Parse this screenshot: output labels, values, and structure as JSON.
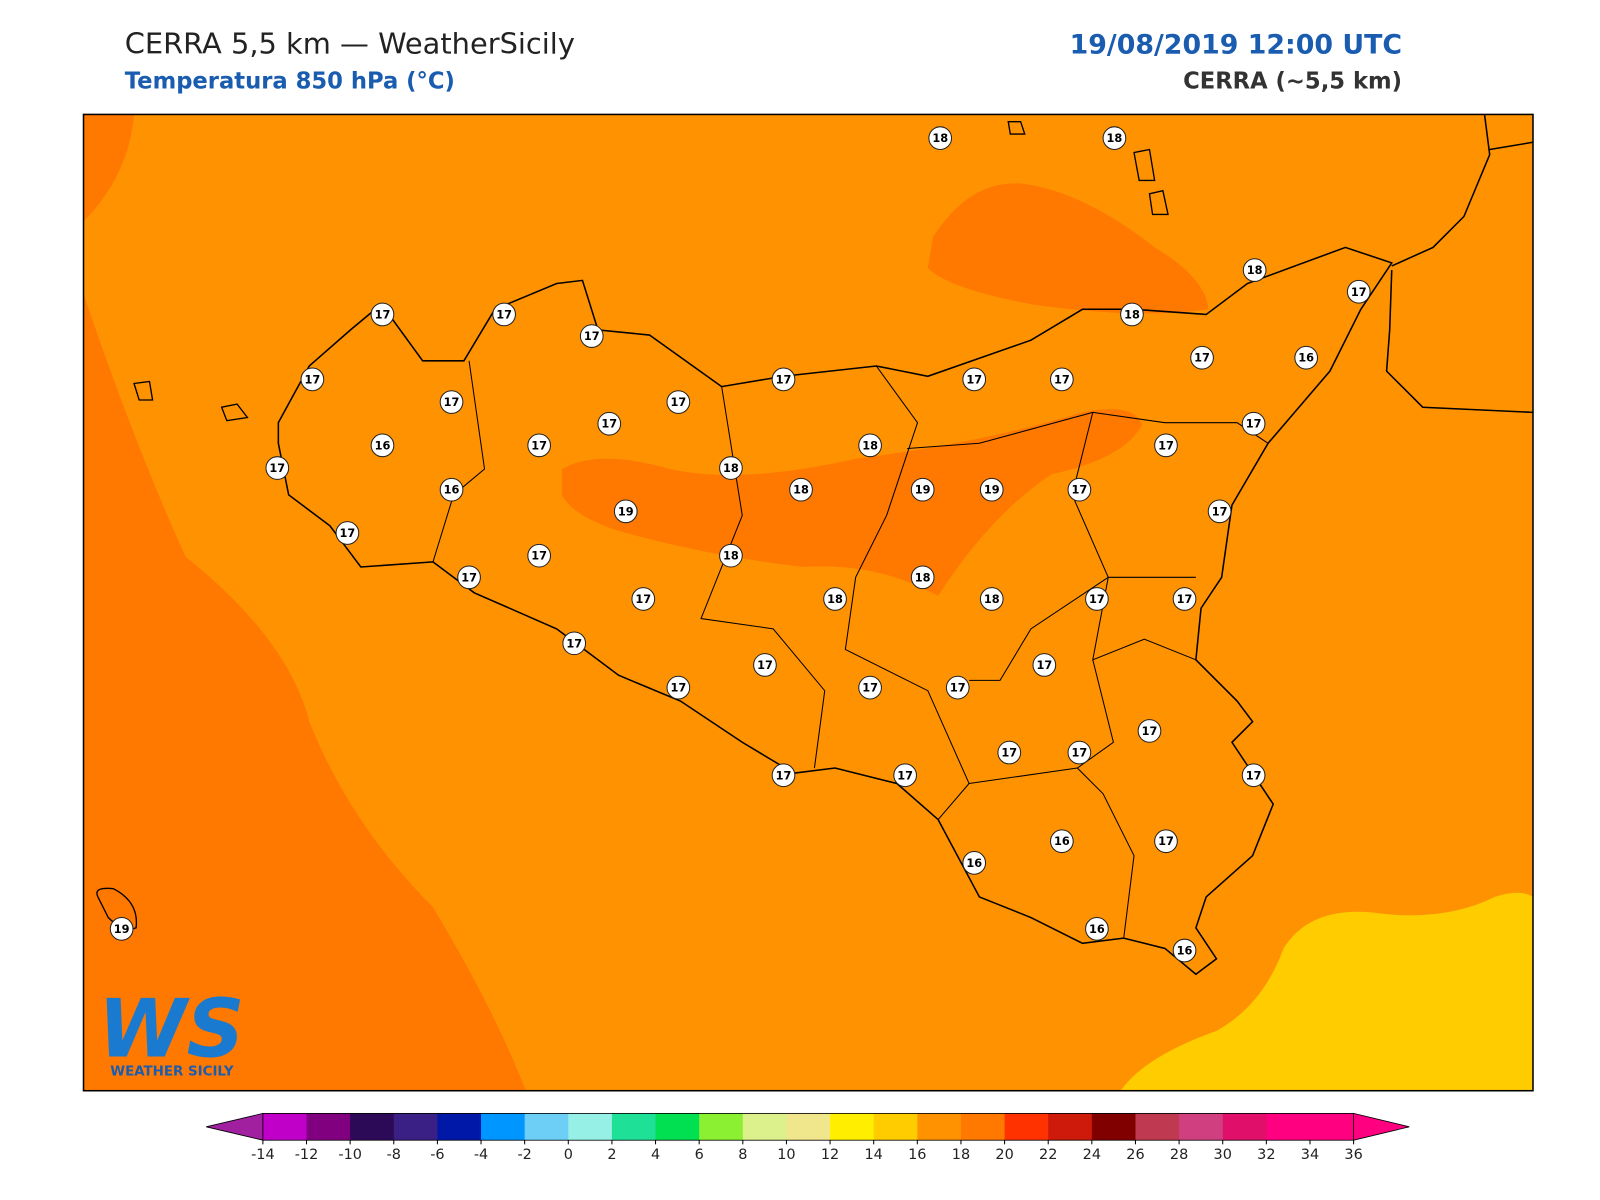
{
  "header": {
    "title": "CERRA 5,5 km — WeatherSicily",
    "subtitle": "Temperatura 850 hPa (°C)",
    "datetime": "19/08/2019 12:00 UTC",
    "model": "CERRA (~5,5 km)"
  },
  "stations": {
    "values": [
      18,
      18,
      18,
      17,
      17,
      17,
      17,
      18,
      17,
      17,
      17,
      17,
      17,
      16,
      17,
      17,
      17,
      17,
      16,
      17,
      18,
      17,
      17,
      18,
      16,
      18,
      19,
      19,
      17,
      19,
      17,
      17,
      17,
      18,
      17,
      18,
      17,
      18,
      18,
      17,
      17,
      17,
      17,
      17,
      17,
      17,
      17,
      17,
      17,
      17,
      17,
      17,
      17,
      16,
      17,
      16,
      19,
      16,
      16
    ]
  },
  "colorbar": {
    "ticks": [
      -14,
      -12,
      -10,
      -8,
      -6,
      -4,
      -2,
      0,
      2,
      4,
      6,
      8,
      10,
      12,
      14,
      16,
      18,
      20,
      22,
      24,
      26,
      28,
      30,
      32,
      34,
      36
    ],
    "under_color": "#a020a0",
    "over_color": "#ff0080",
    "colors": [
      "#c000c8",
      "#800080",
      "#2c0a58",
      "#3a2084",
      "#0018a8",
      "#0096ff",
      "#6ecff6",
      "#96f0e6",
      "#1ee096",
      "#00e050",
      "#8cf032",
      "#dcf08c",
      "#f0e68c",
      "#ffee00",
      "#ffcc00",
      "#ff9200",
      "#ff7800",
      "#ff3200",
      "#cd1a0a",
      "#800000",
      "#bf3a50",
      "#d04080",
      "#e0106a",
      "#ff0080",
      "#ff0080"
    ]
  },
  "logo": {
    "text": "WS",
    "subtext": "WEATHER SICILY"
  }
}
